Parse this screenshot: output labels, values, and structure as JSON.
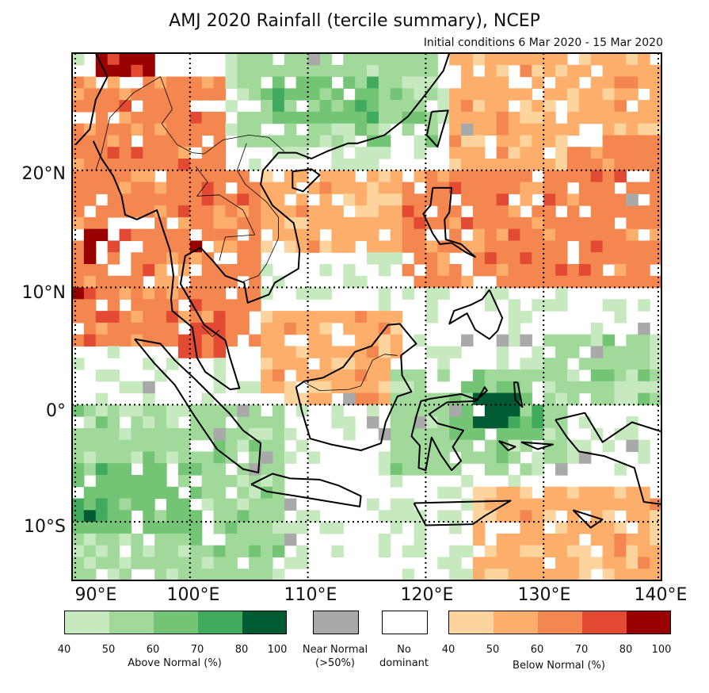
{
  "title": "AMJ 2020 Rainfall (tercile summary), NCEP",
  "subtitle": "Initial conditions 6 Mar 2020 - 15 Mar 2020",
  "lat_labels": [
    "20°N",
    "10°N",
    "0°",
    "10°S"
  ],
  "lon_labels": [
    "90°E",
    "100°E",
    "110°E",
    "120°E",
    "130°E",
    "140°E"
  ],
  "legend": {
    "above": {
      "title": "Above Normal (%)",
      "ticks": [
        "40",
        "50",
        "60",
        "70",
        "80",
        "100"
      ],
      "colors": [
        "#c7e9c0",
        "#a1d99b",
        "#74c476",
        "#41ab5d",
        "#005a32"
      ]
    },
    "near": {
      "title": "Near Normal",
      "subtitle": "(>50%)",
      "color": "#a9a9a9"
    },
    "none": {
      "title": "No",
      "subtitle": "dominant",
      "color": "#ffffff"
    },
    "below": {
      "title": "Below Normal (%)",
      "ticks": [
        "40",
        "50",
        "60",
        "70",
        "80",
        "100"
      ],
      "colors": [
        "#fdd49e",
        "#fdae6b",
        "#f4864f",
        "#e34a33",
        "#990000"
      ]
    }
  },
  "map_data": {
    "lon_range": [
      90,
      140
    ],
    "lat_range": [
      -15,
      30
    ],
    "grid_lon": [
      90,
      100,
      110,
      120,
      130,
      140
    ],
    "grid_lat": [
      20,
      10,
      0,
      -10
    ],
    "regions": [
      {
        "name": "tibet-red",
        "lon": [
          92,
          97
        ],
        "lat": [
          27,
          30
        ],
        "cat": "below",
        "level": 4
      },
      {
        "name": "north-orange",
        "lon": [
          90,
          103
        ],
        "lat": [
          20,
          28
        ],
        "cat": "below",
        "level": 2
      },
      {
        "name": "south-china-green",
        "lon": [
          104,
          121
        ],
        "lat": [
          22,
          30
        ],
        "cat": "above",
        "level": 1
      },
      {
        "name": "south-china-green-mid",
        "lon": [
          107,
          116
        ],
        "lat": [
          24,
          28
        ],
        "cat": "above",
        "level": 2
      },
      {
        "name": "east-china-sea-orange",
        "lon": [
          122,
          140
        ],
        "lat": [
          20,
          30
        ],
        "cat": "below",
        "level": 1
      },
      {
        "name": "east-orange-hot",
        "lon": [
          132,
          140
        ],
        "lat": [
          17,
          23
        ],
        "cat": "below",
        "level": 2
      },
      {
        "name": "mainland-orange",
        "lon": [
          90,
          106
        ],
        "lat": [
          5,
          20
        ],
        "cat": "below",
        "level": 2
      },
      {
        "name": "myanmar-red",
        "lon": [
          91,
          93
        ],
        "lat": [
          12,
          15
        ],
        "cat": "below",
        "level": 4
      },
      {
        "name": "bay-red",
        "lon": [
          90.5,
          92
        ],
        "lat": [
          9,
          10
        ],
        "cat": "below",
        "level": 4
      },
      {
        "name": "laos-red",
        "lon": [
          100,
          101
        ],
        "lat": [
          13,
          15
        ],
        "cat": "below",
        "level": 3
      },
      {
        "name": "malay-red",
        "lon": [
          99,
          103
        ],
        "lat": [
          4,
          7
        ],
        "cat": "below",
        "level": 3
      },
      {
        "name": "scs-light-orange",
        "lon": [
          106,
          118
        ],
        "lat": [
          13,
          20
        ],
        "cat": "below",
        "level": 1
      },
      {
        "name": "philippine-sea-orange",
        "lon": [
          118,
          140
        ],
        "lat": [
          10,
          20
        ],
        "cat": "below",
        "level": 2
      },
      {
        "name": "luzon-red",
        "lon": [
          121,
          122
        ],
        "lat": [
          14,
          15
        ],
        "cat": "below",
        "level": 4
      },
      {
        "name": "borneo-mixed",
        "lon": [
          106,
          118
        ],
        "lat": [
          0,
          8
        ],
        "cat": "below",
        "level": 1
      },
      {
        "name": "indian-ocean-green",
        "lon": [
          90,
          108
        ],
        "lat": [
          -15,
          0
        ],
        "cat": "above",
        "level": 1
      },
      {
        "name": "indian-ocean-green-mid",
        "lon": [
          90,
          101
        ],
        "lat": [
          -11,
          -5
        ],
        "cat": "above",
        "level": 2
      },
      {
        "name": "sw-dark-green",
        "lon": [
          90,
          93
        ],
        "lat": [
          -10,
          -8
        ],
        "cat": "above",
        "level": 3
      },
      {
        "name": "sulawesi-green",
        "lon": [
          117,
          132
        ],
        "lat": [
          -6,
          3
        ],
        "cat": "above",
        "level": 1
      },
      {
        "name": "maluku-green",
        "lon": [
          122,
          130
        ],
        "lat": [
          -3,
          2
        ],
        "cat": "above",
        "level": 2
      },
      {
        "name": "maluku-dark",
        "lon": [
          124,
          128
        ],
        "lat": [
          -2,
          1
        ],
        "cat": "above",
        "level": 4
      },
      {
        "name": "arafura-orange",
        "lon": [
          124,
          140
        ],
        "lat": [
          -15,
          -7
        ],
        "cat": "below",
        "level": 1
      },
      {
        "name": "pacific-east-green",
        "lon": [
          130,
          140
        ],
        "lat": [
          0,
          6
        ],
        "cat": "above",
        "level": 1
      }
    ],
    "near_normal_cells": [
      [
        96,
        1
      ],
      [
        104,
        -1
      ],
      [
        106,
        -5
      ],
      [
        113,
        0
      ],
      [
        116,
        -3
      ],
      [
        119,
        -2
      ],
      [
        122,
        -1
      ],
      [
        123,
        5
      ],
      [
        126,
        5
      ],
      [
        128,
        5
      ],
      [
        134,
        4
      ],
      [
        138,
        6
      ],
      [
        133,
        -5
      ],
      [
        137,
        -4
      ],
      [
        123,
        23
      ],
      [
        137,
        17
      ],
      [
        110,
        29
      ],
      [
        131,
        -6
      ],
      [
        102,
        -3
      ],
      [
        105,
        -6
      ],
      [
        108,
        -9
      ],
      [
        108,
        -12
      ],
      [
        115,
        -2
      ]
    ],
    "coast_paths": [
      [
        [
          92,
          30
        ],
        [
          93,
          28
        ],
        [
          92,
          26
        ],
        [
          91.5,
          23.5
        ],
        [
          90.3,
          22.2
        ]
      ],
      [
        [
          91.8,
          22.5
        ],
        [
          92.5,
          21
        ],
        [
          93.5,
          19.5
        ],
        [
          94.2,
          17.8
        ],
        [
          94.5,
          16.2
        ],
        [
          95.5,
          15.8
        ],
        [
          97.2,
          16.6
        ],
        [
          97.7,
          15
        ],
        [
          98.3,
          13.2
        ],
        [
          98.6,
          11
        ],
        [
          98.4,
          9
        ],
        [
          98.5,
          8
        ],
        [
          100.2,
          6.6
        ],
        [
          100.6,
          4
        ],
        [
          101.3,
          2.8
        ],
        [
          103.4,
          1.3
        ],
        [
          104.2,
          1.4
        ],
        [
          103.4,
          4
        ],
        [
          103,
          5.5
        ],
        [
          101.2,
          6.8
        ],
        [
          100.3,
          8.4
        ],
        [
          99.2,
          10.3
        ],
        [
          99.6,
          12.7
        ],
        [
          100.9,
          13.4
        ],
        [
          102,
          12.2
        ],
        [
          103,
          11
        ],
        [
          104.6,
          10.4
        ],
        [
          104.9,
          8.7
        ],
        [
          106.7,
          9.4
        ],
        [
          107.2,
          10.4
        ],
        [
          109.2,
          11.6
        ],
        [
          109.3,
          13.2
        ],
        [
          108.8,
          15.5
        ],
        [
          107,
          17
        ],
        [
          106,
          18.8
        ],
        [
          106.2,
          20
        ],
        [
          107.5,
          21.5
        ],
        [
          109,
          21.5
        ],
        [
          110.3,
          21
        ],
        [
          111.6,
          21.6
        ],
        [
          113.4,
          22.3
        ],
        [
          114.2,
          22.3
        ],
        [
          116.5,
          23
        ],
        [
          118.5,
          24.6
        ],
        [
          120,
          26.5
        ],
        [
          121.5,
          28.5
        ],
        [
          122,
          30
        ]
      ],
      [
        [
          95.3,
          5.6
        ],
        [
          97.5,
          5.2
        ],
        [
          98.7,
          3.8
        ],
        [
          100.4,
          2.2
        ],
        [
          103.4,
          -0.8
        ],
        [
          104.5,
          -2.2
        ],
        [
          106,
          -3.3
        ],
        [
          105.8,
          -5.8
        ],
        [
          104.5,
          -5.5
        ],
        [
          102.3,
          -3.8
        ],
        [
          100.4,
          -1
        ],
        [
          98.7,
          1.7
        ],
        [
          97,
          3.5
        ],
        [
          95.3,
          5.6
        ]
      ],
      [
        [
          105.2,
          -6.8
        ],
        [
          107,
          -5.9
        ],
        [
          108.5,
          -6.3
        ],
        [
          111,
          -6.4
        ],
        [
          112.6,
          -6.9
        ],
        [
          114.5,
          -7.8
        ],
        [
          114.4,
          -8.7
        ],
        [
          112,
          -8.3
        ],
        [
          109,
          -7.8
        ],
        [
          106.5,
          -7.4
        ],
        [
          105.2,
          -6.8
        ]
      ],
      [
        [
          109,
          1.5
        ],
        [
          109.5,
          -0.6
        ],
        [
          110.2,
          -2.9
        ],
        [
          112,
          -3.4
        ],
        [
          114.5,
          -3.9
        ],
        [
          116.2,
          -3.3
        ],
        [
          116.6,
          -1.5
        ],
        [
          117.6,
          0.7
        ],
        [
          118.8,
          1.1
        ],
        [
          118,
          2.5
        ],
        [
          117.9,
          4.2
        ],
        [
          119.2,
          5.2
        ],
        [
          117.8,
          6.9
        ],
        [
          116.8,
          6.8
        ],
        [
          115.4,
          5
        ],
        [
          114,
          4.5
        ],
        [
          113,
          3.2
        ],
        [
          111.3,
          2.3
        ],
        [
          109.7,
          2
        ],
        [
          109,
          1.5
        ]
      ],
      [
        [
          120.6,
          18.5
        ],
        [
          122.2,
          18.5
        ],
        [
          122,
          16.4
        ],
        [
          121.6,
          15.8
        ],
        [
          121.7,
          14.1
        ],
        [
          123,
          13.7
        ],
        [
          124.2,
          12.6
        ],
        [
          123.4,
          13
        ],
        [
          122.2,
          13.8
        ],
        [
          121.2,
          13.7
        ],
        [
          120.6,
          14.6
        ],
        [
          119.8,
          16.3
        ],
        [
          120.4,
          17
        ],
        [
          120.6,
          18.5
        ]
      ],
      [
        [
          125.4,
          9.8
        ],
        [
          126.5,
          7.4
        ],
        [
          126.1,
          6.3
        ],
        [
          125.4,
          5.6
        ],
        [
          124.2,
          6.4
        ],
        [
          123.5,
          7.8
        ],
        [
          122,
          6.9
        ],
        [
          122.4,
          8
        ],
        [
          123.8,
          8.5
        ],
        [
          124.8,
          9
        ],
        [
          125.4,
          9.8
        ]
      ],
      [
        [
          120.4,
          0.5
        ],
        [
          123,
          0.9
        ],
        [
          124.4,
          0.4
        ],
        [
          125,
          1.5
        ],
        [
          125.2,
          1.2
        ],
        [
          124.2,
          0.3
        ],
        [
          121.8,
          0.2
        ],
        [
          120.3,
          -0.8
        ],
        [
          121,
          -1.6
        ],
        [
          123.2,
          -2.2
        ],
        [
          122.3,
          -3.6
        ],
        [
          123,
          -4.8
        ],
        [
          122.2,
          -5.6
        ],
        [
          121.3,
          -4.3
        ],
        [
          120.5,
          -2.8
        ],
        [
          120,
          -5.6
        ],
        [
          119.4,
          -5.4
        ],
        [
          119.5,
          -3.5
        ],
        [
          118.8,
          -2.7
        ],
        [
          119.2,
          -1
        ],
        [
          119.6,
          0.3
        ],
        [
          120.4,
          0.5
        ]
      ],
      [
        [
          131,
          -1.3
        ],
        [
          133.5,
          -0.7
        ],
        [
          135,
          -3.2
        ],
        [
          137.5,
          -1.5
        ],
        [
          140,
          -2.3
        ],
        [
          140,
          -8.5
        ],
        [
          138.5,
          -8.3
        ],
        [
          137.7,
          -5.4
        ],
        [
          135.2,
          -4.4
        ],
        [
          133,
          -4
        ],
        [
          132,
          -2.8
        ],
        [
          131,
          -1.3
        ]
      ],
      [
        [
          119,
          -8.4
        ],
        [
          123,
          -8.3
        ],
        [
          127.2,
          -8.2
        ],
        [
          125,
          -9.5
        ],
        [
          124,
          -10.2
        ],
        [
          120,
          -10.3
        ],
        [
          119,
          -8.4
        ]
      ],
      [
        [
          127.8,
          1.9
        ],
        [
          128.2,
          -0.2
        ],
        [
          127.6,
          0.4
        ],
        [
          127.5,
          1.9
        ],
        [
          127.8,
          1.9
        ]
      ],
      [
        [
          126.2,
          -3.1
        ],
        [
          127.6,
          -3.6
        ],
        [
          127,
          -3.9
        ],
        [
          126.2,
          -3.1
        ]
      ],
      [
        [
          128.1,
          -3.2
        ],
        [
          130.8,
          -3.4
        ],
        [
          129.5,
          -3.8
        ],
        [
          128.1,
          -3.2
        ]
      ],
      [
        [
          120.5,
          25
        ],
        [
          121.9,
          25.1
        ],
        [
          121,
          22
        ],
        [
          120.1,
          23
        ],
        [
          120.5,
          25
        ]
      ],
      [
        [
          108.7,
          19.9
        ],
        [
          110.3,
          20.1
        ],
        [
          111,
          19.6
        ],
        [
          109.6,
          18.2
        ],
        [
          108.7,
          18.5
        ],
        [
          108.7,
          19.9
        ]
      ],
      [
        [
          132.5,
          -9
        ],
        [
          135,
          -9.8
        ],
        [
          134,
          -10.5
        ],
        [
          132.5,
          -9
        ]
      ]
    ],
    "border_paths": [
      [
        [
          97.5,
          28
        ],
        [
          98.5,
          25.2
        ],
        [
          97.6,
          24
        ],
        [
          98.9,
          22.2
        ],
        [
          100.2,
          21.5
        ],
        [
          101.2,
          21.4
        ],
        [
          102.8,
          22.6
        ],
        [
          105,
          23
        ],
        [
          106.7,
          22.8
        ],
        [
          108,
          21.6
        ]
      ],
      [
        [
          100.5,
          20.3
        ],
        [
          101.5,
          19
        ],
        [
          100.6,
          17.8
        ],
        [
          102.5,
          17.9
        ],
        [
          104.5,
          16.6
        ],
        [
          105.5,
          14.5
        ],
        [
          103,
          14.3
        ],
        [
          102.5,
          12.3
        ]
      ],
      [
        [
          104.8,
          22.3
        ],
        [
          104,
          20
        ],
        [
          104.7,
          18.8
        ],
        [
          106.5,
          17.3
        ],
        [
          107.5,
          16
        ],
        [
          107.5,
          14.2
        ],
        [
          106.5,
          12
        ],
        [
          105.8,
          11
        ],
        [
          104.5,
          10.5
        ]
      ],
      [
        [
          101,
          6.7
        ],
        [
          101.9,
          5.8
        ],
        [
          102.5,
          6.4
        ]
      ],
      [
        [
          109.7,
          1.9
        ],
        [
          111,
          1.2
        ],
        [
          113.5,
          1.3
        ],
        [
          114.5,
          1.6
        ],
        [
          115.5,
          3.8
        ],
        [
          116.5,
          4.3
        ],
        [
          117.6,
          4.2
        ]
      ],
      [
        [
          92,
          20
        ],
        [
          92.5,
          21.5
        ],
        [
          93.2,
          24.5
        ],
        [
          95.2,
          26.6
        ],
        [
          97.5,
          28
        ]
      ]
    ]
  }
}
